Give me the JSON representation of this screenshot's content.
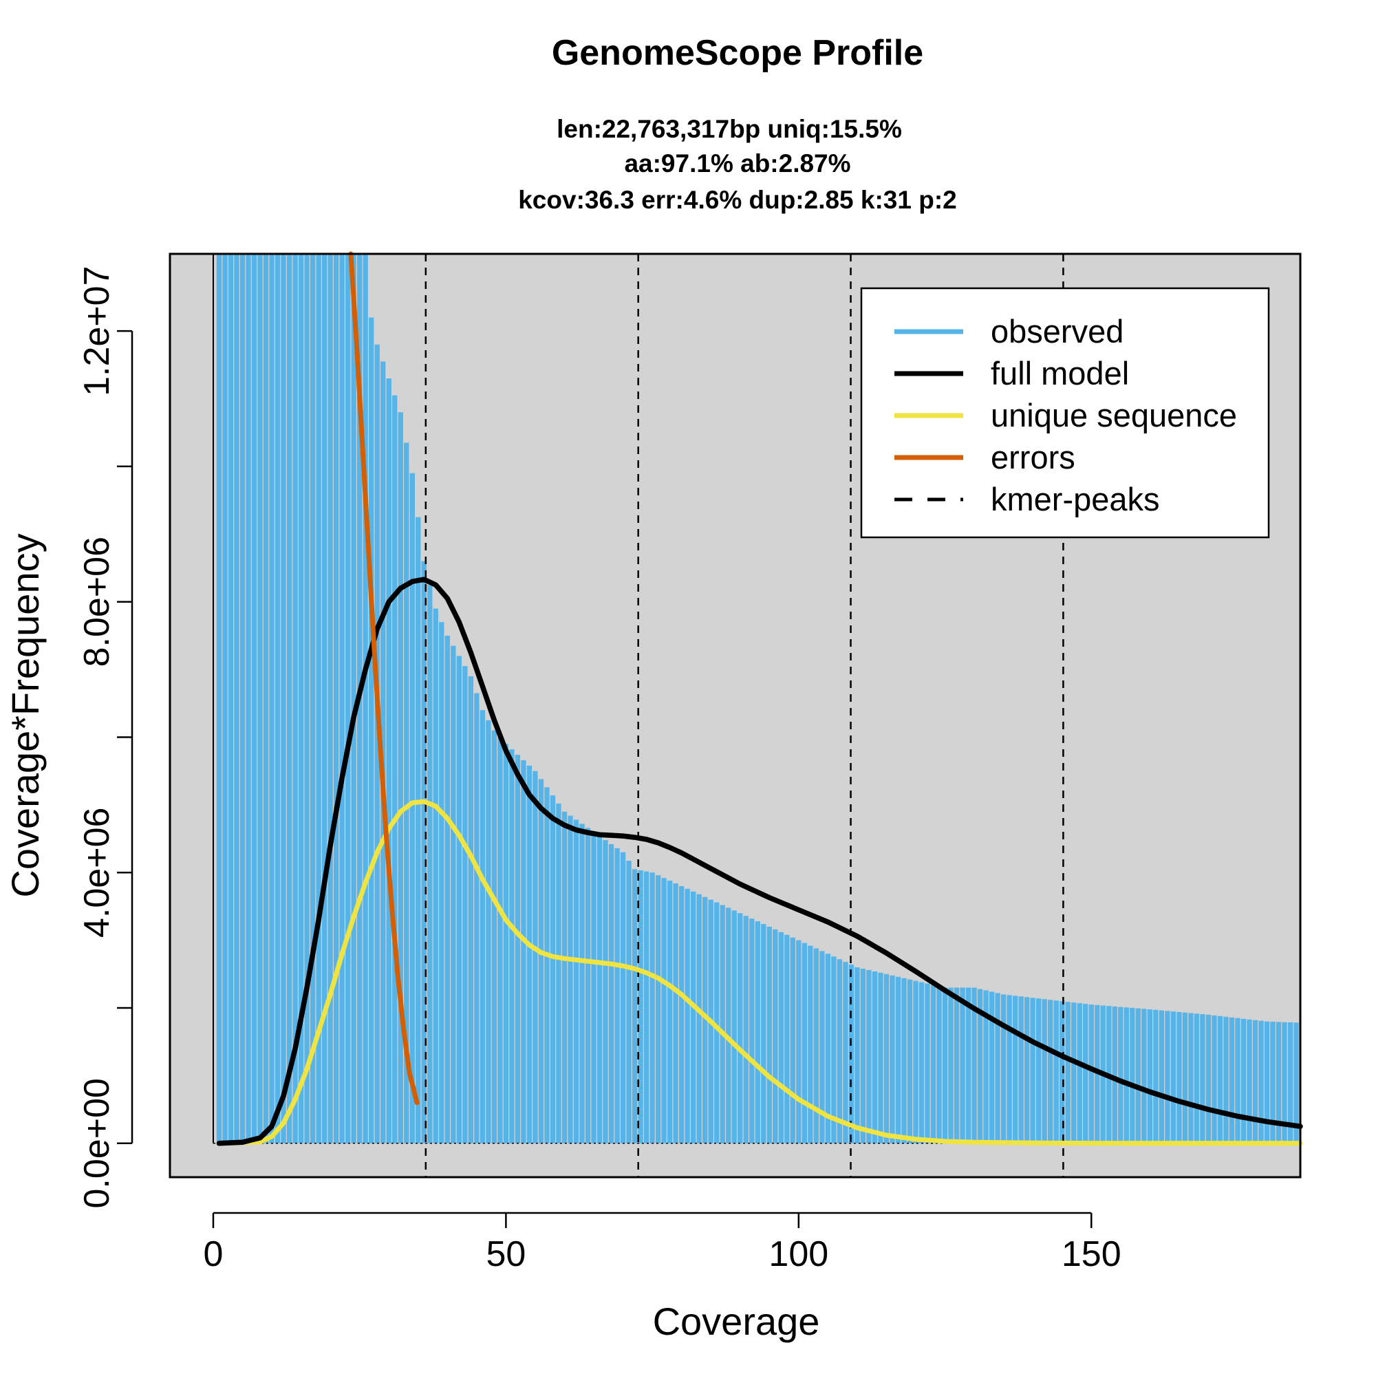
{
  "chart_data": {
    "type": "bar",
    "title": "GenomeScope Profile",
    "subtitle_lines": [
      "len:22,763,317bp uniq:15.5%",
      "aa:97.1% ab:2.87%",
      "kcov:36.3 err:4.6%  dup:2.85  k:31 p:2"
    ],
    "xlabel": "Coverage",
    "ylabel": "Coverage*Frequency",
    "xlim": [
      -7.4,
      185.7
    ],
    "ylim": [
      -500000,
      13140000
    ],
    "x_ticks": [
      0,
      50,
      100,
      150
    ],
    "x_tick_labels": [
      "0",
      "50",
      "100",
      "150"
    ],
    "y_ticks": [
      0,
      2000000,
      4000000,
      6000000,
      8000000,
      10000000,
      12000000
    ],
    "y_tick_labels": [
      "0.0e+00",
      "",
      "4.0e+06",
      "",
      "8.0e+06",
      "",
      "1.2e+07"
    ],
    "grid": false,
    "legend_position": "top-right",
    "legend": [
      {
        "label": "observed",
        "color": "#56B4E9",
        "style": "solid"
      },
      {
        "label": "full model",
        "color": "#000000",
        "style": "solid"
      },
      {
        "label": "unique sequence",
        "color": "#F0E442",
        "style": "solid"
      },
      {
        "label": "errors",
        "color": "#D55E00",
        "style": "solid"
      },
      {
        "label": "kmer-peaks",
        "color": "#000000",
        "style": "dashed"
      }
    ],
    "colors": {
      "observed": "#56B4E9",
      "full_model": "#000000",
      "unique_sequence": "#F0E442",
      "errors": "#D55E00",
      "plot_background": "#D3D3D3"
    },
    "kmer_peaks": [
      36.3,
      72.6,
      108.9,
      145.2
    ],
    "observed_anchors": [
      [
        0,
        20000000
      ],
      [
        26,
        13400000
      ],
      [
        27,
        12200000
      ],
      [
        28,
        11800000
      ],
      [
        30,
        11300000
      ],
      [
        32,
        10800000
      ],
      [
        34,
        9900000
      ],
      [
        36,
        8600000
      ],
      [
        38,
        7900000
      ],
      [
        40,
        7500000
      ],
      [
        42,
        7200000
      ],
      [
        44,
        6900000
      ],
      [
        46,
        6400000
      ],
      [
        48,
        6100000
      ],
      [
        50,
        5900000
      ],
      [
        55,
        5500000
      ],
      [
        60,
        4900000
      ],
      [
        65,
        4600000
      ],
      [
        70,
        4300000
      ],
      [
        72,
        4050000
      ],
      [
        75,
        4000000
      ],
      [
        80,
        3800000
      ],
      [
        85,
        3600000
      ],
      [
        90,
        3400000
      ],
      [
        95,
        3200000
      ],
      [
        100,
        3000000
      ],
      [
        105,
        2800000
      ],
      [
        110,
        2600000
      ],
      [
        115,
        2500000
      ],
      [
        120,
        2400000
      ],
      [
        125,
        2300000
      ],
      [
        130,
        2300000
      ],
      [
        135,
        2200000
      ],
      [
        140,
        2150000
      ],
      [
        145,
        2100000
      ],
      [
        150,
        2050000
      ],
      [
        160,
        1980000
      ],
      [
        170,
        1900000
      ],
      [
        180,
        1800000
      ],
      [
        186,
        1780000
      ]
    ],
    "full_model": [
      [
        1,
        0
      ],
      [
        5,
        15000
      ],
      [
        8,
        80000
      ],
      [
        10,
        250000
      ],
      [
        12,
        700000
      ],
      [
        14,
        1400000
      ],
      [
        16,
        2300000
      ],
      [
        18,
        3300000
      ],
      [
        20,
        4400000
      ],
      [
        22,
        5400000
      ],
      [
        24,
        6300000
      ],
      [
        26,
        7000000
      ],
      [
        28,
        7600000
      ],
      [
        30,
        8000000
      ],
      [
        32,
        8200000
      ],
      [
        34,
        8300000
      ],
      [
        36,
        8330000
      ],
      [
        38,
        8250000
      ],
      [
        40,
        8050000
      ],
      [
        42,
        7700000
      ],
      [
        44,
        7250000
      ],
      [
        46,
        6750000
      ],
      [
        48,
        6250000
      ],
      [
        50,
        5800000
      ],
      [
        52,
        5450000
      ],
      [
        54,
        5150000
      ],
      [
        56,
        4950000
      ],
      [
        58,
        4800000
      ],
      [
        60,
        4700000
      ],
      [
        62,
        4630000
      ],
      [
        64,
        4590000
      ],
      [
        66,
        4560000
      ],
      [
        68,
        4550000
      ],
      [
        70,
        4540000
      ],
      [
        72,
        4520000
      ],
      [
        74,
        4490000
      ],
      [
        76,
        4440000
      ],
      [
        78,
        4370000
      ],
      [
        80,
        4290000
      ],
      [
        85,
        4060000
      ],
      [
        90,
        3830000
      ],
      [
        95,
        3630000
      ],
      [
        100,
        3450000
      ],
      [
        105,
        3270000
      ],
      [
        110,
        3060000
      ],
      [
        115,
        2810000
      ],
      [
        120,
        2540000
      ],
      [
        125,
        2260000
      ],
      [
        130,
        1990000
      ],
      [
        135,
        1740000
      ],
      [
        140,
        1500000
      ],
      [
        145,
        1290000
      ],
      [
        150,
        1100000
      ],
      [
        155,
        920000
      ],
      [
        160,
        760000
      ],
      [
        165,
        620000
      ],
      [
        170,
        500000
      ],
      [
        175,
        400000
      ],
      [
        180,
        320000
      ],
      [
        185.7,
        250000
      ]
    ],
    "unique_sequence": [
      [
        1,
        0
      ],
      [
        8,
        20000
      ],
      [
        10,
        100000
      ],
      [
        12,
        300000
      ],
      [
        14,
        650000
      ],
      [
        16,
        1100000
      ],
      [
        18,
        1650000
      ],
      [
        20,
        2200000
      ],
      [
        22,
        2800000
      ],
      [
        24,
        3350000
      ],
      [
        26,
        3850000
      ],
      [
        28,
        4300000
      ],
      [
        30,
        4650000
      ],
      [
        32,
        4900000
      ],
      [
        34,
        5030000
      ],
      [
        36,
        5050000
      ],
      [
        38,
        4980000
      ],
      [
        40,
        4800000
      ],
      [
        42,
        4550000
      ],
      [
        44,
        4250000
      ],
      [
        46,
        3900000
      ],
      [
        48,
        3600000
      ],
      [
        50,
        3300000
      ],
      [
        52,
        3100000
      ],
      [
        54,
        2930000
      ],
      [
        56,
        2820000
      ],
      [
        58,
        2760000
      ],
      [
        60,
        2730000
      ],
      [
        62,
        2710000
      ],
      [
        64,
        2690000
      ],
      [
        66,
        2670000
      ],
      [
        68,
        2650000
      ],
      [
        70,
        2620000
      ],
      [
        72,
        2580000
      ],
      [
        74,
        2520000
      ],
      [
        76,
        2440000
      ],
      [
        78,
        2330000
      ],
      [
        80,
        2200000
      ],
      [
        85,
        1800000
      ],
      [
        90,
        1380000
      ],
      [
        95,
        980000
      ],
      [
        100,
        650000
      ],
      [
        105,
        400000
      ],
      [
        110,
        230000
      ],
      [
        115,
        120000
      ],
      [
        120,
        60000
      ],
      [
        125,
        30000
      ],
      [
        130,
        15000
      ],
      [
        140,
        5000
      ],
      [
        150,
        2000
      ],
      [
        160,
        0
      ],
      [
        185.7,
        0
      ]
    ],
    "errors": [
      [
        23.5,
        13140000
      ],
      [
        24.5,
        11800000
      ],
      [
        25.5,
        10300000
      ],
      [
        26.5,
        8800000
      ],
      [
        27.5,
        7300000
      ],
      [
        28.5,
        5900000
      ],
      [
        29.5,
        4600000
      ],
      [
        30.5,
        3500000
      ],
      [
        31.5,
        2500000
      ],
      [
        32.5,
        1700000
      ],
      [
        33.5,
        1050000
      ],
      [
        34.8,
        600000
      ]
    ]
  }
}
